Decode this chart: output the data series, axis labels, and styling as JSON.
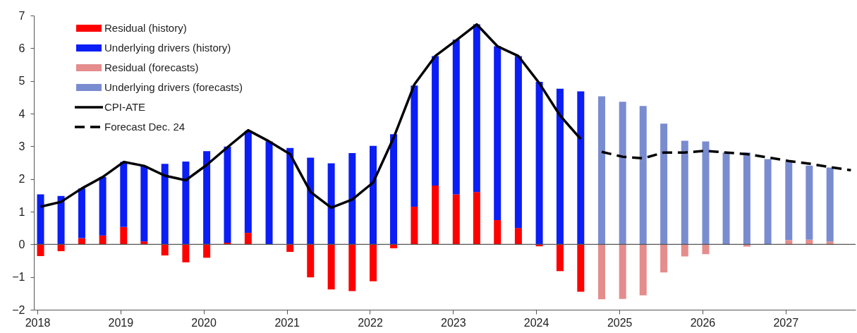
{
  "chart_data": {
    "type": "bar",
    "stacked": true,
    "legend": "top left",
    "grid": false,
    "xlim": [
      "2018-01-01",
      "2027-10-20"
    ],
    "xticks": [
      "2018",
      "2019",
      "2020",
      "2021",
      "2022",
      "2023",
      "2024",
      "2025",
      "2026",
      "2027"
    ],
    "ylim": [
      -2,
      7
    ],
    "yticks": [
      -2,
      -1,
      0,
      1,
      2,
      3,
      4,
      5,
      6,
      7
    ],
    "x": [
      "2018-01-15",
      "2018-04-15",
      "2018-07-15",
      "2018-10-15",
      "2019-01-15",
      "2019-04-15",
      "2019-07-15",
      "2019-10-15",
      "2020-01-15",
      "2020-04-15",
      "2020-07-15",
      "2020-10-15",
      "2021-01-15",
      "2021-04-15",
      "2021-07-15",
      "2021-10-15",
      "2022-01-15",
      "2022-04-15",
      "2022-07-15",
      "2022-10-15",
      "2023-01-15",
      "2023-04-15",
      "2023-07-15",
      "2023-10-15",
      "2024-01-15",
      "2024-04-15",
      "2024-07-15",
      "2024-10-15",
      "2025-01-15",
      "2025-04-15",
      "2025-07-15",
      "2025-10-15",
      "2026-01-15",
      "2026-04-15",
      "2026-07-15",
      "2026-10-15",
      "2027-01-15",
      "2027-04-15",
      "2027-07-15",
      "2027-10-15"
    ],
    "ref_lines": [
      {
        "axis": "y",
        "value": 0,
        "color": "#555555"
      }
    ],
    "series": [
      {
        "name": "Residual (history)",
        "color": "#ff0000",
        "values": [
          -0.36,
          -0.21,
          0.19,
          0.27,
          0.53,
          0.09,
          -0.34,
          -0.55,
          -0.41,
          0.05,
          0.35,
          0,
          -0.23,
          -1.01,
          -1.38,
          -1.43,
          -1.13,
          -0.12,
          1.15,
          1.8,
          1.53,
          1.6,
          0.74,
          0.5,
          -0.06,
          -0.82,
          -1.45,
          null,
          null,
          null,
          null,
          null,
          null,
          null,
          null,
          null,
          null,
          null,
          null,
          null
        ]
      },
      {
        "name": "Underlying drivers (history)",
        "color": "#0a1ef5",
        "values": [
          1.53,
          1.48,
          1.52,
          1.79,
          1.99,
          2.31,
          2.46,
          2.53,
          2.85,
          2.94,
          3.12,
          3.15,
          2.95,
          2.65,
          2.48,
          2.79,
          3.01,
          3.37,
          3.71,
          3.96,
          4.73,
          5.13,
          5.32,
          5.26,
          4.97,
          4.76,
          4.68,
          null,
          null,
          null,
          null,
          null,
          null,
          null,
          null,
          null,
          null,
          null,
          null,
          null
        ]
      },
      {
        "name": "Residual (forecasts)",
        "color": "#e58c8c",
        "values": [
          null,
          null,
          null,
          null,
          null,
          null,
          null,
          null,
          null,
          null,
          null,
          null,
          null,
          null,
          null,
          null,
          null,
          null,
          null,
          null,
          null,
          null,
          null,
          null,
          null,
          null,
          null,
          -1.68,
          -1.67,
          -1.56,
          -0.86,
          -0.37,
          -0.3,
          0,
          -0.07,
          0,
          0.13,
          0.14,
          0.09,
          null
        ]
      },
      {
        "name": "Underlying drivers (forecasts)",
        "color": "#7a8cd0",
        "values": [
          null,
          null,
          null,
          null,
          null,
          null,
          null,
          null,
          null,
          null,
          null,
          null,
          null,
          null,
          null,
          null,
          null,
          null,
          null,
          null,
          null,
          null,
          null,
          null,
          null,
          null,
          null,
          4.53,
          4.36,
          4.23,
          3.69,
          3.17,
          3.15,
          2.81,
          2.81,
          2.61,
          2.39,
          2.27,
          2.26,
          null
        ]
      },
      {
        "name": "CPI-ATE",
        "type": "line",
        "color": "#000000",
        "line_style": "solid",
        "values": [
          1.15,
          1.3,
          1.71,
          2.06,
          2.52,
          2.4,
          2.1,
          1.96,
          2.43,
          2.97,
          3.49,
          3.15,
          2.76,
          1.6,
          1.12,
          1.37,
          1.89,
          3.26,
          4.89,
          5.76,
          6.24,
          6.73,
          6.06,
          5.76,
          4.93,
          3.94,
          3.22,
          null,
          null,
          null,
          null,
          null,
          null,
          null,
          null,
          null,
          null,
          null,
          null,
          null
        ]
      },
      {
        "name": "Forecast Dec. 24",
        "type": "line",
        "color": "#000000",
        "line_style": "dashed",
        "values": [
          null,
          null,
          null,
          null,
          null,
          null,
          null,
          null,
          null,
          null,
          null,
          null,
          null,
          null,
          null,
          null,
          null,
          null,
          null,
          null,
          null,
          null,
          null,
          null,
          null,
          null,
          null,
          2.83,
          2.68,
          2.63,
          2.81,
          2.81,
          2.86,
          2.81,
          2.76,
          2.66,
          2.55,
          2.47,
          2.36,
          2.27
        ]
      }
    ]
  }
}
